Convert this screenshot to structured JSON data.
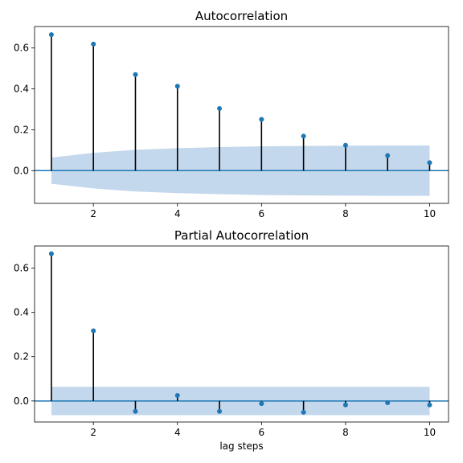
{
  "chart_data": [
    {
      "type": "stem",
      "title": "Autocorrelation",
      "xlabel": "",
      "xlim": [
        0.6,
        10.45
      ],
      "ylim": [
        -0.16,
        0.705
      ],
      "xticks": [
        2,
        4,
        6,
        8,
        10
      ],
      "yticks": [
        0.0,
        0.2,
        0.4,
        0.6
      ],
      "ytick_labels": [
        "0.0",
        "0.2",
        "0.4",
        "0.6"
      ],
      "grid": false,
      "colors": {
        "marker": "#1f77b4",
        "stem": "#000000",
        "band": "#c3d8ec",
        "baseline": "#1f77b4"
      },
      "lags": [
        1,
        2,
        3,
        4,
        5,
        6,
        7,
        8,
        9,
        10
      ],
      "values": [
        0.665,
        0.619,
        0.47,
        0.413,
        0.304,
        0.251,
        0.169,
        0.124,
        0.074,
        0.039
      ],
      "confidence_band": [
        0.064,
        0.087,
        0.102,
        0.11,
        0.115,
        0.119,
        0.121,
        0.122,
        0.123,
        0.123
      ]
    },
    {
      "type": "stem",
      "title": "Partial Autocorrelation",
      "xlabel": "lag steps",
      "xlim": [
        0.6,
        10.45
      ],
      "ylim": [
        -0.095,
        0.7
      ],
      "xticks": [
        2,
        4,
        6,
        8,
        10
      ],
      "yticks": [
        0.0,
        0.2,
        0.4,
        0.6
      ],
      "ytick_labels": [
        "0.0",
        "0.2",
        "0.4",
        "0.6"
      ],
      "grid": false,
      "colors": {
        "marker": "#1f77b4",
        "stem": "#000000",
        "band": "#c3d8ec",
        "baseline": "#1f77b4"
      },
      "lags": [
        1,
        2,
        3,
        4,
        5,
        6,
        7,
        8,
        9,
        10
      ],
      "values": [
        0.665,
        0.317,
        -0.047,
        0.025,
        -0.047,
        -0.012,
        -0.051,
        -0.018,
        -0.008,
        -0.018
      ],
      "confidence_band": [
        0.064,
        0.064,
        0.064,
        0.064,
        0.064,
        0.064,
        0.064,
        0.064,
        0.064,
        0.064
      ]
    }
  ]
}
